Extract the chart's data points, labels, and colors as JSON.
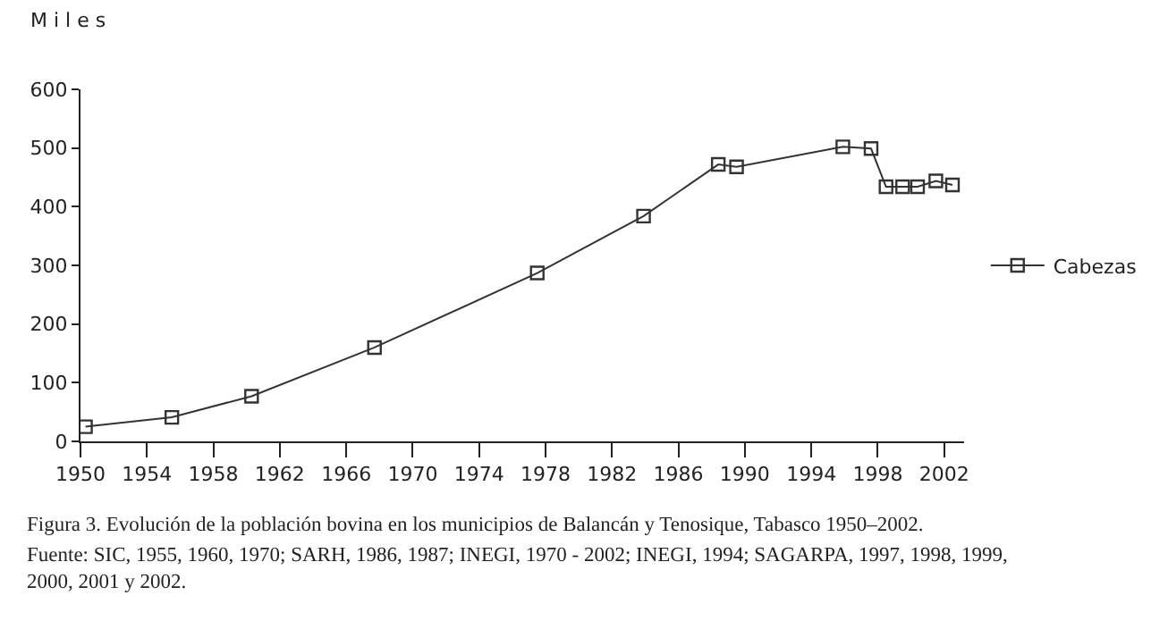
{
  "chart_data": {
    "type": "line",
    "ylabel": "M i l e s",
    "x": [
      1950.3,
      1955.5,
      1960.3,
      1967.7,
      1977.5,
      1983.9,
      1988.4,
      1989.5,
      1995.9,
      1997.6,
      1998.5,
      1999.5,
      2000.4,
      2001.5,
      2002.5
    ],
    "series": [
      {
        "name": "Cabezas",
        "color": "#333333",
        "values": [
          25,
          41,
          77,
          160,
          287,
          384,
          472,
          468,
          502,
          499,
          434,
          434,
          434,
          444,
          437
        ]
      }
    ],
    "xlim": [
      1950,
      2003.2
    ],
    "xticks": [
      1950,
      1954,
      1958,
      1962,
      1966,
      1970,
      1974,
      1978,
      1982,
      1986,
      1990,
      1994,
      1998,
      2002
    ],
    "ylim": [
      0,
      600
    ],
    "yticks": [
      0,
      100,
      200,
      300,
      400,
      500,
      600
    ],
    "legend": "right",
    "marker": "square",
    "line_style": "solid",
    "annotations": [
      "Figura 3. Evolución de la población bovina en los municipios de Balancán y Tenosique, Tabasco 1950–2002.",
      "Fuente: SIC, 1955, 1960, 1970; SARH, 1986, 1987; INEGI, 1970 - 2002; INEGI, 1994; SAGARPA, 1997, 1998, 1999, 2000, 2001 y 2002."
    ]
  }
}
